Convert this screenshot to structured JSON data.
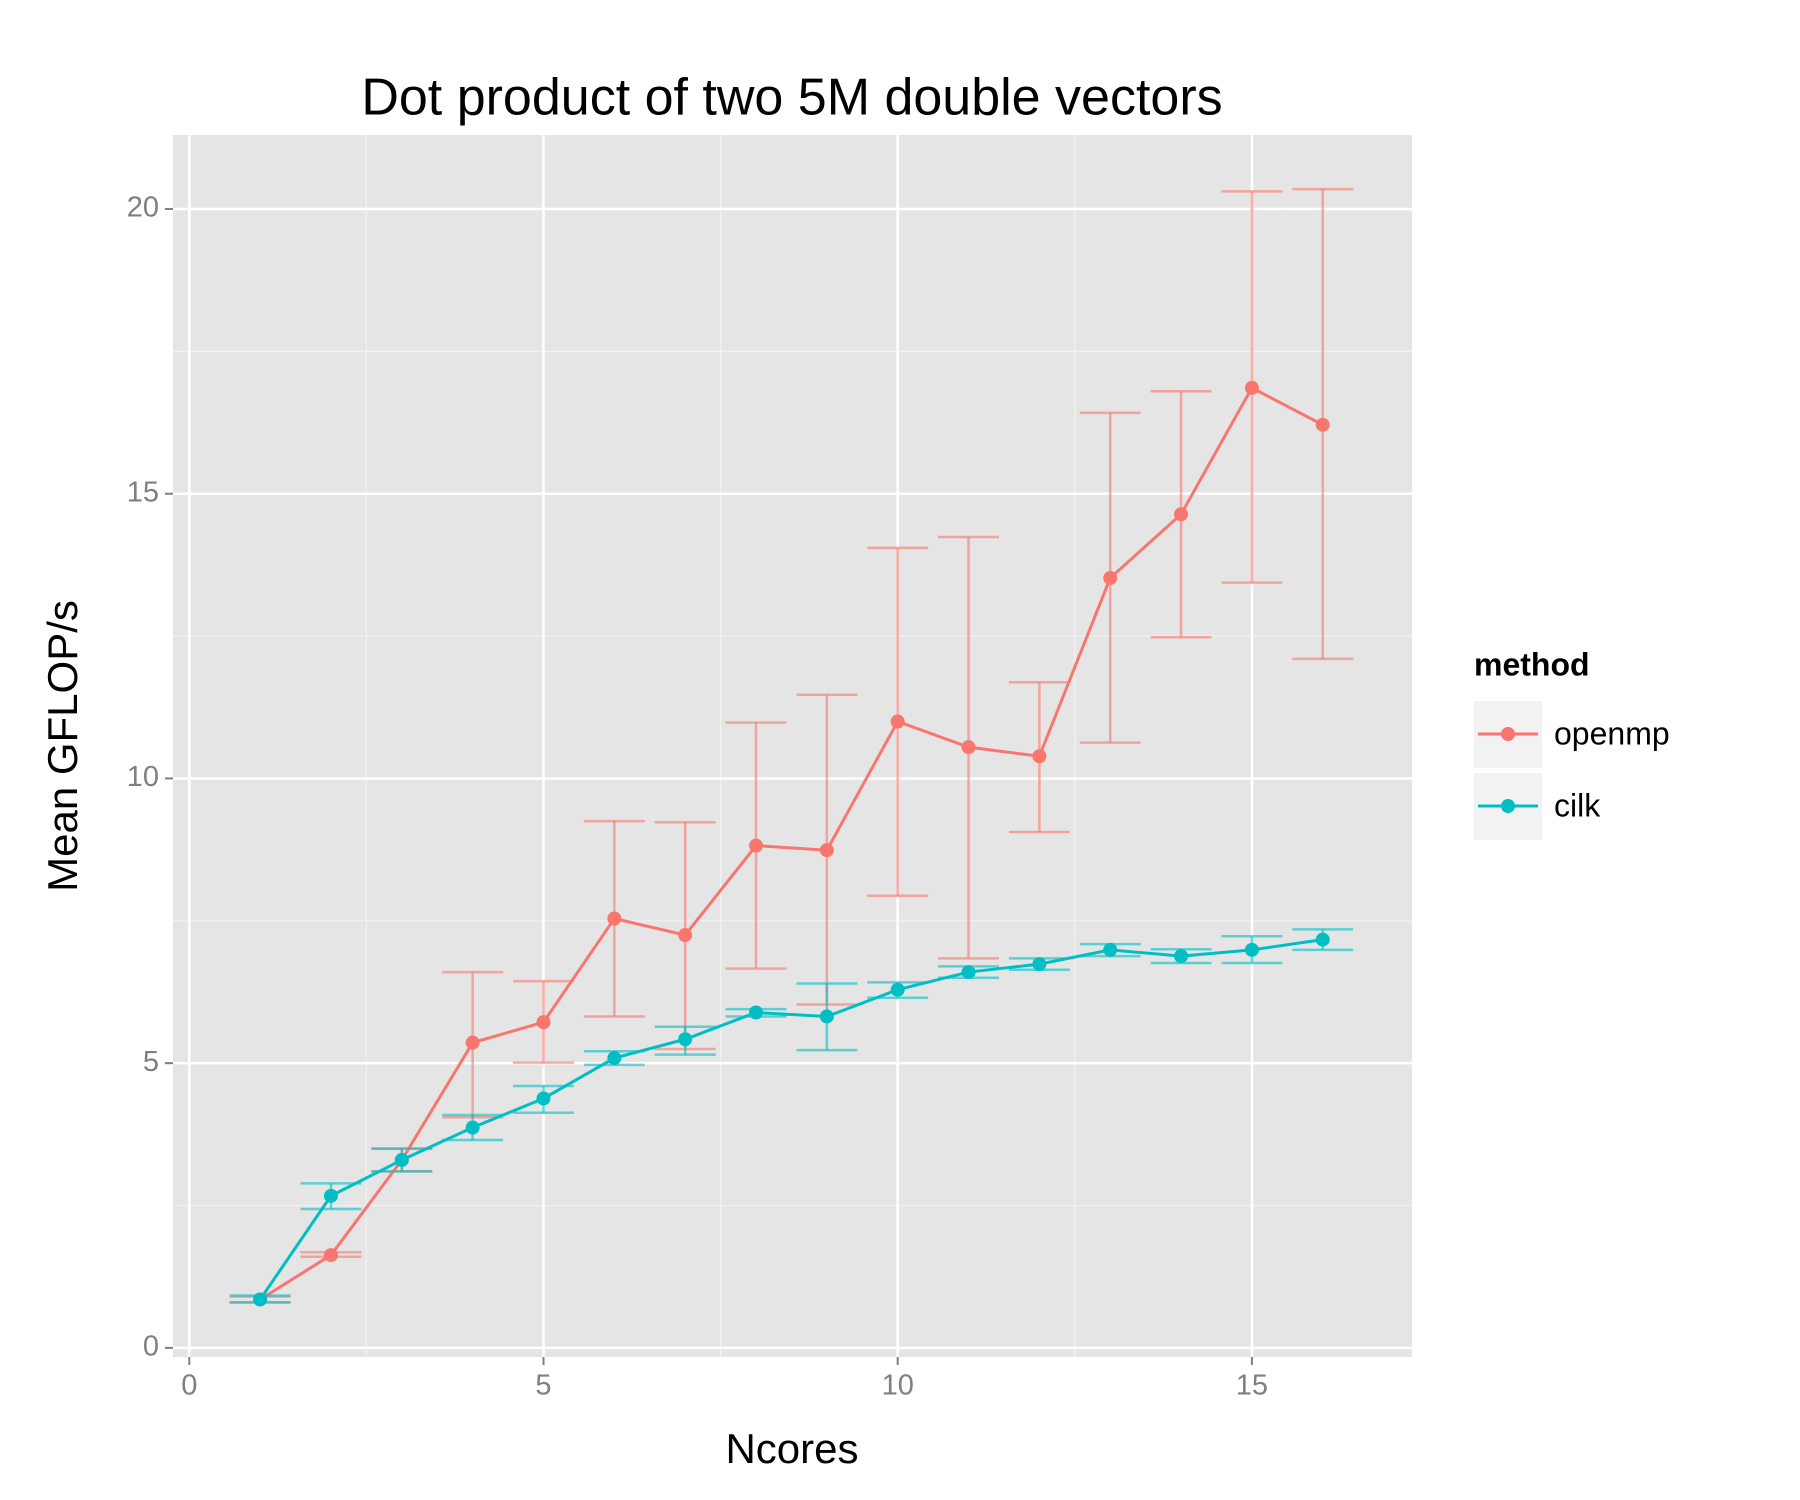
{
  "chart_data": {
    "type": "line",
    "title": "Dot product of two 5M double vectors",
    "x_label": "Ncores",
    "y_label": "Mean GFLOP/s",
    "legend_title": "method",
    "legend_position": "right",
    "x": [
      1,
      2,
      3,
      4,
      5,
      6,
      7,
      8,
      9,
      10,
      11,
      12,
      13,
      14,
      15,
      16
    ],
    "series": [
      {
        "name": "openmp",
        "color": "#F8766D",
        "values": [
          0.85,
          1.63,
          3.3,
          5.36,
          5.72,
          7.54,
          7.25,
          8.82,
          8.74,
          11.0,
          10.55,
          10.39,
          13.52,
          14.64,
          16.86,
          16.21
        ],
        "lower": [
          0.8,
          1.6,
          3.1,
          4.05,
          5.01,
          5.82,
          5.25,
          6.66,
          6.03,
          7.94,
          6.84,
          9.06,
          10.63,
          12.48,
          13.44,
          12.1
        ],
        "upper": [
          0.9,
          1.68,
          3.5,
          6.6,
          6.44,
          9.25,
          9.23,
          10.98,
          11.47,
          14.05,
          14.24,
          11.69,
          16.42,
          16.8,
          20.31,
          20.35
        ]
      },
      {
        "name": "cilk",
        "color": "#00BFC4",
        "values": [
          0.85,
          2.67,
          3.3,
          3.87,
          4.38,
          5.09,
          5.42,
          5.89,
          5.82,
          6.29,
          6.6,
          6.74,
          6.99,
          6.88,
          6.99,
          7.17
        ],
        "lower": [
          0.8,
          2.44,
          3.1,
          3.65,
          4.13,
          4.97,
          5.15,
          5.82,
          5.23,
          6.15,
          6.5,
          6.64,
          6.88,
          6.76,
          6.76,
          6.99
        ],
        "upper": [
          0.92,
          2.89,
          3.5,
          4.09,
          4.6,
          5.21,
          5.64,
          5.95,
          6.4,
          6.42,
          6.7,
          6.84,
          7.09,
          7.0,
          7.23,
          7.35
        ]
      }
    ],
    "xlim": [
      -0.23,
      17.26
    ],
    "ylim": [
      -0.16,
      21.3
    ],
    "xticks": [
      0,
      5,
      10,
      15
    ],
    "yticks": [
      0,
      5,
      10,
      15,
      20
    ],
    "minor_xticks": [
      2.5,
      7.5,
      12.5
    ],
    "minor_yticks": [
      2.5,
      7.5,
      12.5,
      17.5
    ],
    "grid": true,
    "panel_color": "#e5e5e5"
  }
}
